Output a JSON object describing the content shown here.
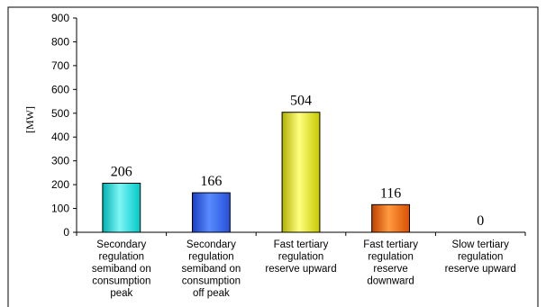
{
  "chart_data": {
    "type": "bar",
    "ylabel": "[MW]",
    "ylim": [
      0,
      900
    ],
    "yticks": [
      0,
      100,
      200,
      300,
      400,
      500,
      600,
      700,
      800,
      900
    ],
    "grid": false,
    "legend": "none",
    "categories": [
      [
        "Secondary",
        "regulation",
        "semiband on",
        "consumption",
        "peak"
      ],
      [
        "Secondary",
        "regulation",
        "semiband on",
        "consumption",
        "off peak"
      ],
      [
        "Fast tertiary",
        "regulation",
        "reserve upward"
      ],
      [
        "Fast tertiary",
        "regulation",
        "reserve",
        "downward"
      ],
      [
        "Slow tertiary",
        "regulation",
        "reserve upward"
      ]
    ],
    "values": [
      206,
      166,
      504,
      116,
      0
    ],
    "data_labels": [
      "206",
      "166",
      "504",
      "116",
      "0"
    ],
    "colors": [
      "#00dede",
      "#2f5ff0",
      "#e6e600",
      "#f06a00",
      "#999999"
    ]
  }
}
